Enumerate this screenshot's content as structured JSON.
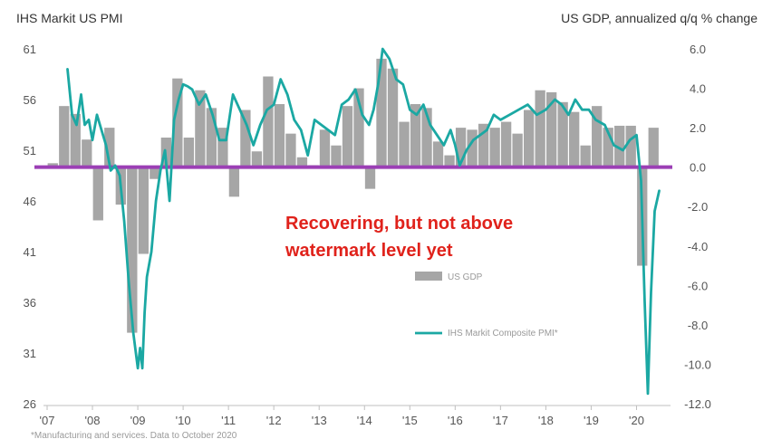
{
  "chart_data": {
    "type": "bar+line",
    "title_left": "IHS Markit  US PMI",
    "title_right": "US GDP, annualized q/q % change",
    "left_axis": {
      "ticks": [
        61,
        56,
        51,
        46,
        41,
        36,
        31,
        26
      ],
      "range": [
        26,
        61
      ]
    },
    "right_axis": {
      "ticks": [
        "6.0",
        "4.0",
        "2.0",
        "0.0",
        "-2.0",
        "-4.0",
        "-6.0",
        "-8.0",
        "-10.0",
        "-12.0"
      ],
      "range": [
        -12,
        6
      ]
    },
    "x_ticks": [
      "'07",
      "'08",
      "'09",
      "'10",
      "'11",
      "'12",
      "'13",
      "'14",
      "'15",
      "'16",
      "'17",
      "'18",
      "'19",
      "'20"
    ],
    "baseline_value": 0,
    "colors": {
      "bar": "#a6a6a6",
      "line": "#1ba8a3",
      "baseline": "#9b3fb5",
      "annotation": "#e0221b"
    },
    "annotation": {
      "line1": "Recovering, but not above",
      "line2": "watermark level yet"
    },
    "legend": {
      "bar_label": "US GDP",
      "line_label": "IHS Markit Composite PMI*"
    },
    "footnote": "*Manufacturing and services. Data to October 2020",
    "gdp_series": {
      "name": "US GDP",
      "quarters": [
        "2007Q1",
        "2007Q2",
        "2007Q3",
        "2007Q4",
        "2008Q1",
        "2008Q2",
        "2008Q3",
        "2008Q4",
        "2009Q1",
        "2009Q2",
        "2009Q3",
        "2009Q4",
        "2010Q1",
        "2010Q2",
        "2010Q3",
        "2010Q4",
        "2011Q1",
        "2011Q2",
        "2011Q3",
        "2011Q4",
        "2012Q1",
        "2012Q2",
        "2012Q3",
        "2012Q4",
        "2013Q1",
        "2013Q2",
        "2013Q3",
        "2013Q4",
        "2014Q1",
        "2014Q2",
        "2014Q3",
        "2014Q4",
        "2015Q1",
        "2015Q2",
        "2015Q3",
        "2015Q4",
        "2016Q1",
        "2016Q2",
        "2016Q3",
        "2016Q4",
        "2017Q1",
        "2017Q2",
        "2017Q3",
        "2017Q4",
        "2018Q1",
        "2018Q2",
        "2018Q3",
        "2018Q4",
        "2019Q1",
        "2019Q2",
        "2019Q3",
        "2019Q4",
        "2020Q1",
        "2020Q2"
      ],
      "values": [
        0.2,
        3.1,
        2.7,
        1.4,
        -2.7,
        2.0,
        -1.9,
        -8.4,
        -4.4,
        -0.6,
        1.5,
        4.5,
        1.5,
        3.9,
        3.0,
        2.0,
        -1.5,
        2.9,
        0.8,
        4.6,
        3.2,
        1.7,
        0.5,
        0.1,
        1.9,
        1.1,
        3.1,
        4.0,
        -1.1,
        5.5,
        5.0,
        2.3,
        3.2,
        3.0,
        1.3,
        0.6,
        2.0,
        1.9,
        2.2,
        2.0,
        2.3,
        1.7,
        2.9,
        3.9,
        3.8,
        3.3,
        2.8,
        1.1,
        3.1,
        2.0,
        2.1,
        2.1,
        -5.0,
        2.0
      ]
    },
    "pmi_series": {
      "name": "IHS Markit Composite PMI*",
      "x": [
        2007.45,
        2007.55,
        2007.65,
        2007.75,
        2007.83,
        2007.92,
        2008.0,
        2008.1,
        2008.2,
        2008.3,
        2008.4,
        2008.5,
        2008.6,
        2008.7,
        2008.8,
        2008.9,
        2009.0,
        2009.05,
        2009.1,
        2009.15,
        2009.2,
        2009.3,
        2009.4,
        2009.5,
        2009.6,
        2009.7,
        2009.8,
        2009.9,
        2010.0,
        2010.1,
        2010.2,
        2010.35,
        2010.5,
        2010.65,
        2010.8,
        2010.95,
        2011.1,
        2011.25,
        2011.4,
        2011.55,
        2011.7,
        2011.85,
        2012.0,
        2012.15,
        2012.3,
        2012.45,
        2012.6,
        2012.75,
        2012.9,
        2013.05,
        2013.2,
        2013.35,
        2013.5,
        2013.65,
        2013.8,
        2013.95,
        2014.1,
        2014.2,
        2014.3,
        2014.4,
        2014.55,
        2014.7,
        2014.85,
        2015.0,
        2015.15,
        2015.3,
        2015.45,
        2015.6,
        2015.75,
        2015.9,
        2016.0,
        2016.1,
        2016.25,
        2016.4,
        2016.55,
        2016.7,
        2016.85,
        2017.0,
        2017.2,
        2017.4,
        2017.6,
        2017.8,
        2018.0,
        2018.2,
        2018.35,
        2018.5,
        2018.65,
        2018.8,
        2018.95,
        2019.1,
        2019.3,
        2019.5,
        2019.7,
        2019.85,
        2020.0,
        2020.1,
        2020.18,
        2020.25,
        2020.32,
        2020.4,
        2020.5
      ],
      "values": [
        59.0,
        54.5,
        53.5,
        56.5,
        53.5,
        54.0,
        52.0,
        54.5,
        53.0,
        51.5,
        49.0,
        49.5,
        48.5,
        44.0,
        38.0,
        33.0,
        29.5,
        31.5,
        29.5,
        35.0,
        38.5,
        41.0,
        46.0,
        49.0,
        51.0,
        46.0,
        54.0,
        56.0,
        57.5,
        57.3,
        57.0,
        55.5,
        56.5,
        54.5,
        52.0,
        52.0,
        56.5,
        55.0,
        53.5,
        51.5,
        53.5,
        55.0,
        55.5,
        58.0,
        56.5,
        54.0,
        53.0,
        50.5,
        54.0,
        53.5,
        53.0,
        52.5,
        55.5,
        56.0,
        57.0,
        54.5,
        53.5,
        55.0,
        57.5,
        61.0,
        60.0,
        58.0,
        57.5,
        55.0,
        54.5,
        55.5,
        53.5,
        52.5,
        51.5,
        53.0,
        51.5,
        49.5,
        51.0,
        52.0,
        52.5,
        53.0,
        54.5,
        54.0,
        54.5,
        55.0,
        55.5,
        54.5,
        55.0,
        56.0,
        55.5,
        54.5,
        56.0,
        55.0,
        55.0,
        54.0,
        53.5,
        51.5,
        51.0,
        52.0,
        52.5,
        48.0,
        36.0,
        27.0,
        37.0,
        45.0,
        47.0
      ]
    }
  }
}
